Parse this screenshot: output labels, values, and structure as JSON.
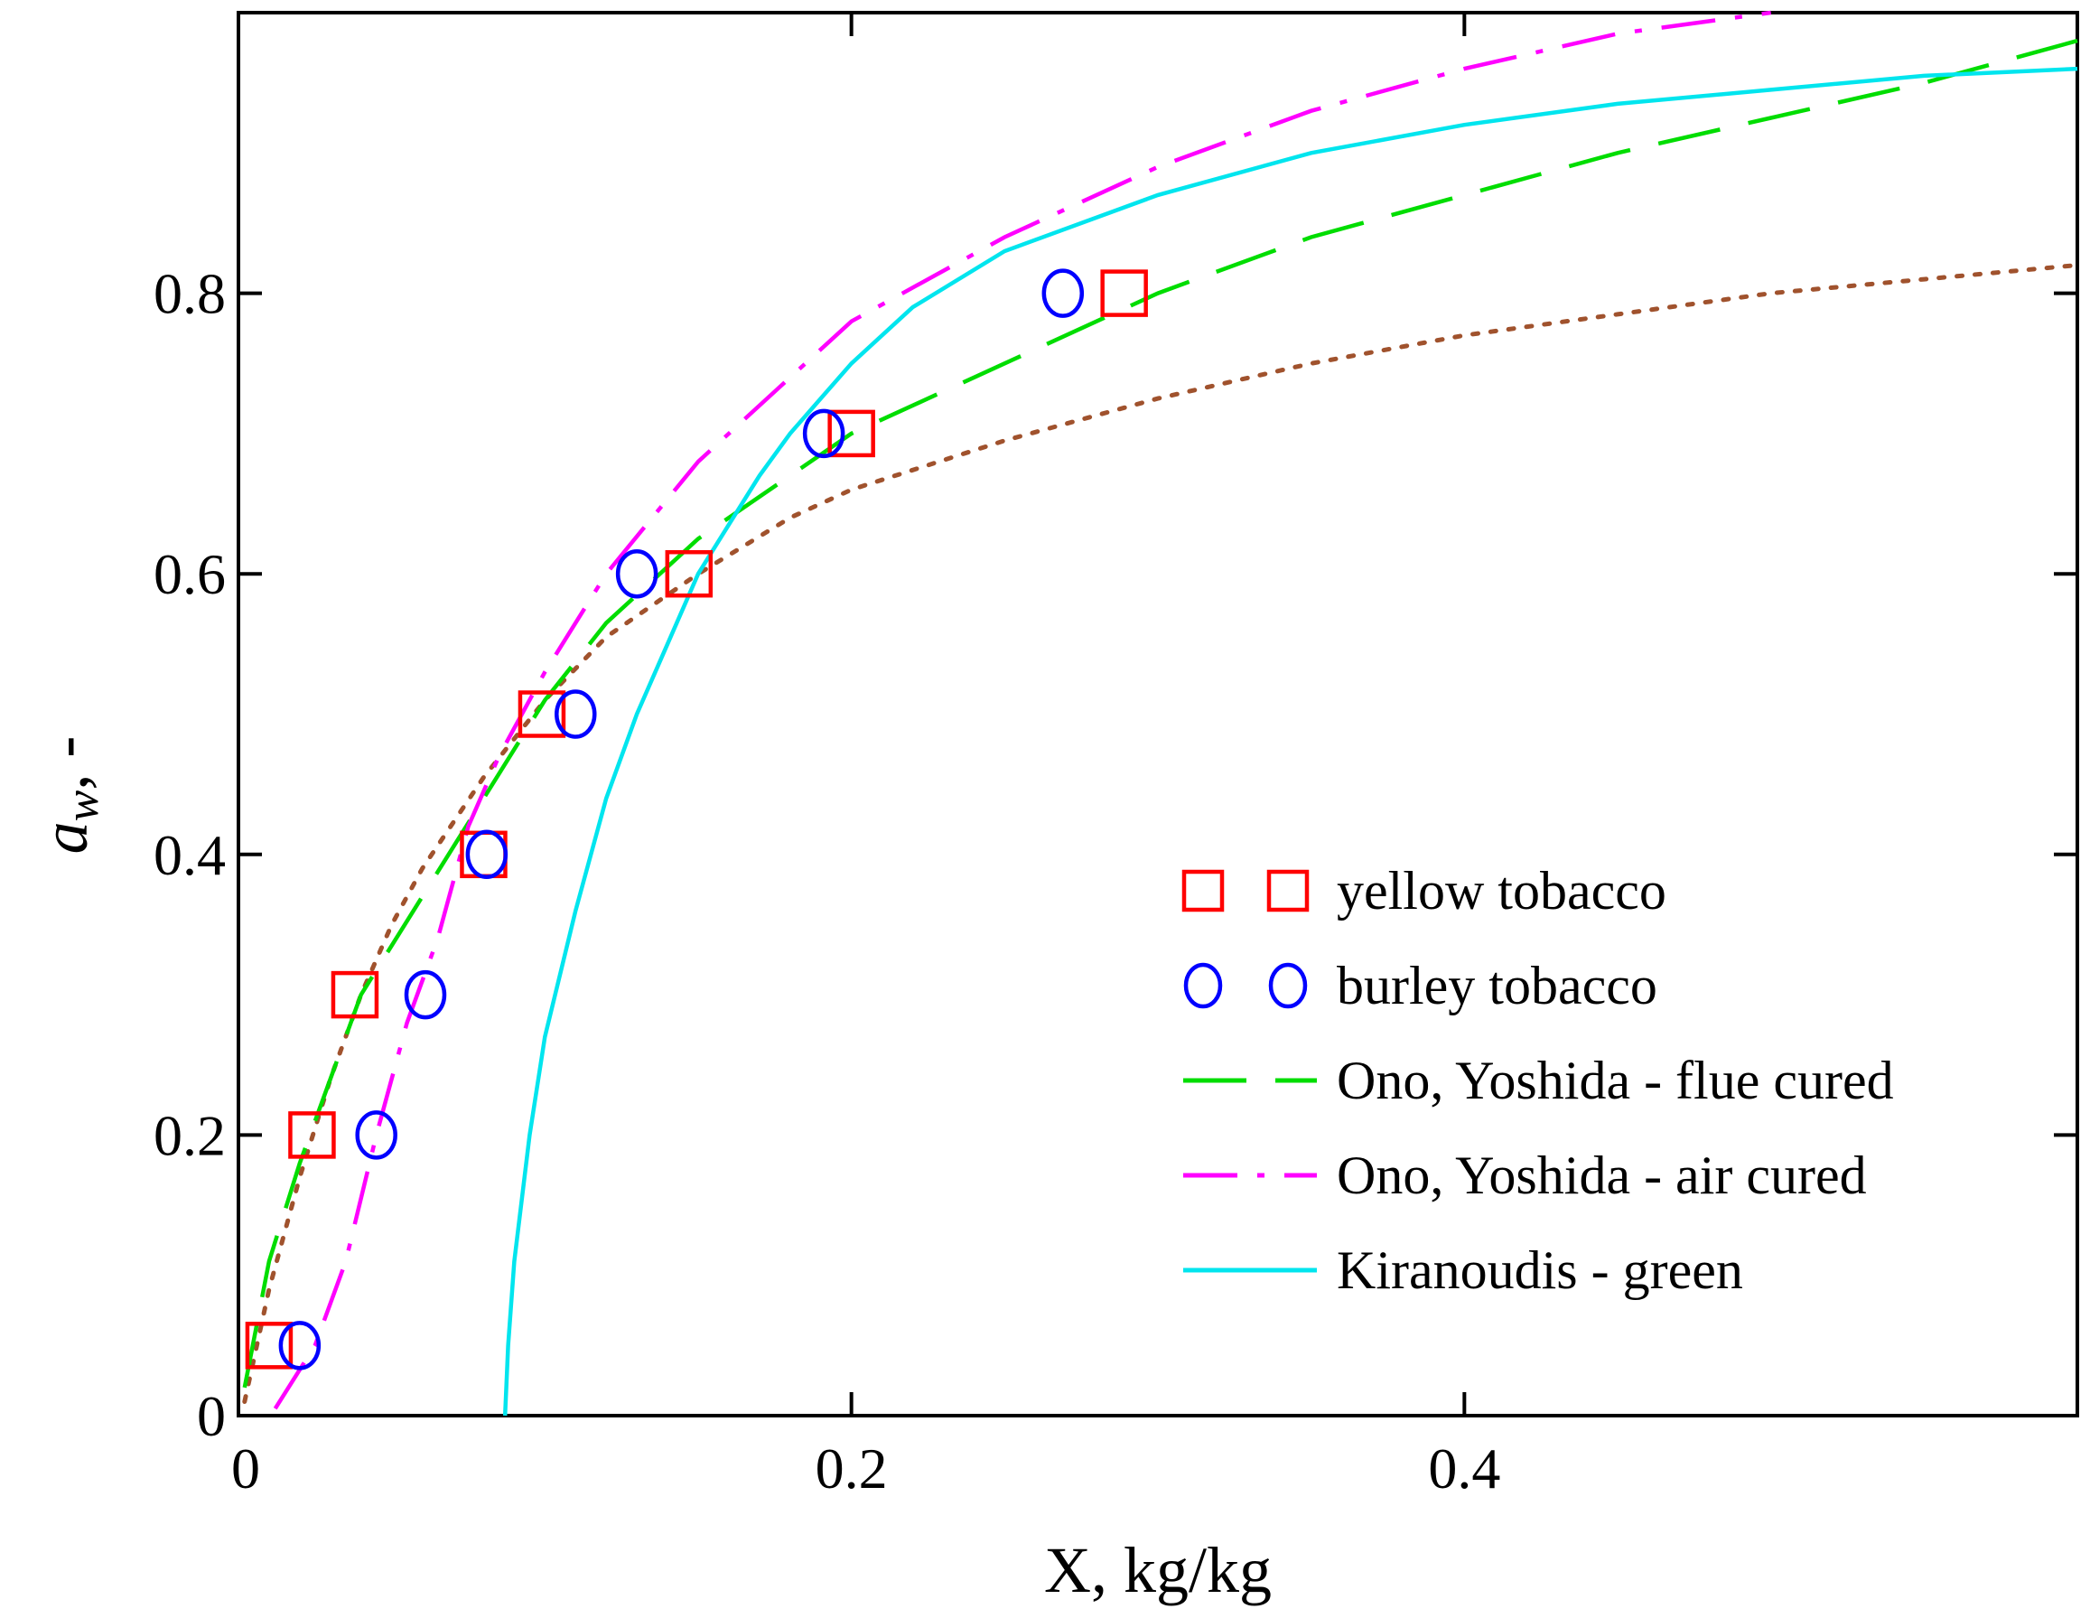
{
  "chart_data": {
    "type": "scatter",
    "xlabel": "X, kg/kg",
    "ylabel": "aw, -",
    "ylabel_main": "a",
    "ylabel_sub": "w",
    "ylabel_tail": ", -",
    "xlim": [
      0,
      0.6
    ],
    "ylim": [
      0,
      1.0
    ],
    "xticks": [
      0,
      0.2,
      0.4
    ],
    "xtick_labels": [
      "0",
      "0.2",
      "0.4"
    ],
    "yticks": [
      0,
      0.2,
      0.4,
      0.6,
      0.8
    ],
    "ytick_labels": [
      "0",
      "0.2",
      "0.4",
      "0.6",
      "0.8"
    ],
    "grid": false,
    "legend_position": "lower-right",
    "series": [
      {
        "name": "yellow tobacco",
        "kind": "marker",
        "marker": "square",
        "color": "#ff0000",
        "x": [
          0.01,
          0.024,
          0.038,
          0.08,
          0.099,
          0.147,
          0.2,
          0.289
        ],
        "y": [
          0.05,
          0.2,
          0.3,
          0.4,
          0.5,
          0.6,
          0.7,
          0.8
        ]
      },
      {
        "name": "burley tobacco",
        "kind": "marker",
        "marker": "circle",
        "color": "#0000ff",
        "x": [
          0.02,
          0.045,
          0.061,
          0.081,
          0.11,
          0.13,
          0.191,
          0.269
        ],
        "y": [
          0.05,
          0.2,
          0.3,
          0.4,
          0.5,
          0.6,
          0.7,
          0.8
        ]
      },
      {
        "name": "Ono, Yoshida - flue cured",
        "kind": "line",
        "dash": "70,32",
        "color": "#00dd00",
        "x": [
          0.002,
          0.01,
          0.02,
          0.03,
          0.04,
          0.06,
          0.08,
          0.1,
          0.12,
          0.15,
          0.18,
          0.2,
          0.25,
          0.3,
          0.35,
          0.4,
          0.45,
          0.5,
          0.55,
          0.6
        ],
        "y": [
          0.02,
          0.11,
          0.18,
          0.24,
          0.3,
          0.37,
          0.44,
          0.51,
          0.565,
          0.625,
          0.67,
          0.7,
          0.75,
          0.8,
          0.84,
          0.87,
          0.9,
          0.925,
          0.95,
          0.98
        ]
      },
      {
        "name": "Ono, Yoshida - air cured",
        "kind": "line",
        "dash": "60,22,8,22",
        "color": "#ff00ff",
        "x": [
          0.012,
          0.025,
          0.035,
          0.045,
          0.055,
          0.065,
          0.075,
          0.085,
          0.1,
          0.12,
          0.15,
          0.18,
          0.2,
          0.25,
          0.3,
          0.35,
          0.4,
          0.45,
          0.5
        ],
        "y": [
          0.005,
          0.05,
          0.11,
          0.2,
          0.28,
          0.34,
          0.42,
          0.47,
          0.53,
          0.6,
          0.68,
          0.74,
          0.78,
          0.84,
          0.89,
          0.93,
          0.96,
          0.985,
          1.0
        ]
      },
      {
        "name": "Kiranoudis - green",
        "kind": "line",
        "dash": "",
        "color": "#00e5ee",
        "x": [
          0.087,
          0.088,
          0.09,
          0.095,
          0.1,
          0.11,
          0.12,
          0.13,
          0.14,
          0.15,
          0.16,
          0.17,
          0.18,
          0.19,
          0.2,
          0.22,
          0.25,
          0.3,
          0.35,
          0.4,
          0.45,
          0.5,
          0.55,
          0.6
        ],
        "y": [
          0.0,
          0.05,
          0.11,
          0.2,
          0.27,
          0.36,
          0.44,
          0.5,
          0.55,
          0.6,
          0.635,
          0.67,
          0.7,
          0.725,
          0.75,
          0.79,
          0.83,
          0.87,
          0.9,
          0.92,
          0.935,
          0.945,
          0.955,
          0.96
        ]
      },
      {
        "name": "",
        "kind": "line",
        "dash": "6,14",
        "color": "#a0522d",
        "x": [
          0.002,
          0.01,
          0.02,
          0.03,
          0.04,
          0.05,
          0.06,
          0.08,
          0.1,
          0.12,
          0.15,
          0.18,
          0.2,
          0.25,
          0.3,
          0.35,
          0.4,
          0.45,
          0.5,
          0.55,
          0.6
        ],
        "y": [
          0.01,
          0.09,
          0.17,
          0.24,
          0.3,
          0.35,
          0.39,
          0.455,
          0.51,
          0.555,
          0.6,
          0.64,
          0.66,
          0.695,
          0.725,
          0.75,
          0.77,
          0.785,
          0.8,
          0.81,
          0.82
        ]
      }
    ]
  }
}
